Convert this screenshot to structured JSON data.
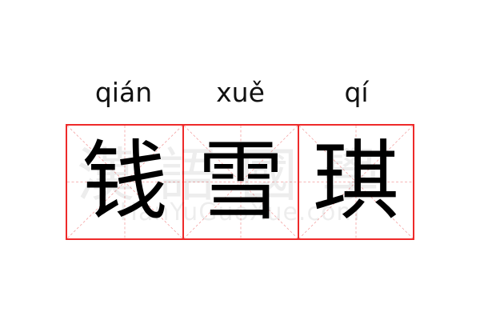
{
  "characters": [
    {
      "hanzi": "钱",
      "pinyin": "qián"
    },
    {
      "hanzi": "雪",
      "pinyin": "xuě"
    },
    {
      "hanzi": "琪",
      "pinyin": "qí"
    }
  ],
  "watermark": {
    "chinese": "漢語國學",
    "latin": "HanYuGuoXue.com"
  },
  "colors": {
    "grid_border": "#ee2a2a",
    "guide_lines": "#f4a0a0",
    "text": "#000000"
  }
}
